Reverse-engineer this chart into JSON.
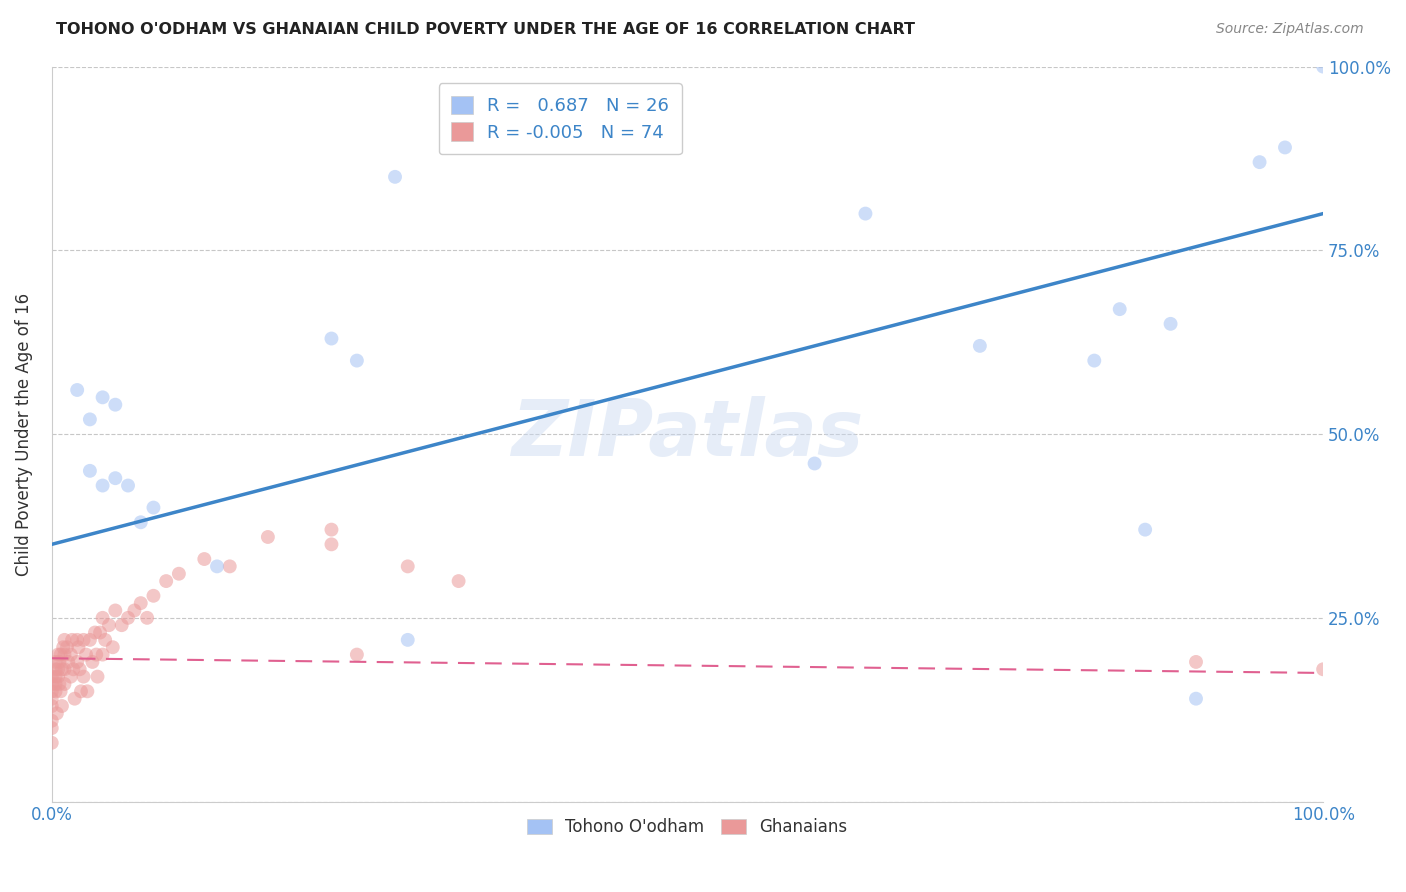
{
  "title": "TOHONO O'ODHAM VS GHANAIAN CHILD POVERTY UNDER THE AGE OF 16 CORRELATION CHART",
  "source": "Source: ZipAtlas.com",
  "ylabel_label": "Child Poverty Under the Age of 16",
  "yaxis_ticks": [
    0.0,
    0.25,
    0.5,
    0.75,
    1.0
  ],
  "yaxis_ticklabels": [
    "",
    "25.0%",
    "50.0%",
    "75.0%",
    "100.0%"
  ],
  "xaxis_ticks": [
    0.0,
    0.25,
    0.5,
    0.75,
    1.0
  ],
  "xaxis_ticklabels": [
    "0.0%",
    "",
    "",
    "",
    "100.0%"
  ],
  "legend_label1": "Tohono O'odham",
  "legend_label2": "Ghanaians",
  "watermark": "ZIPatlas",
  "blue_color": "#a4c2f4",
  "pink_color": "#ea9999",
  "blue_line_color": "#3d85c8",
  "pink_line_color": "#e06090",
  "grid_color": "#b0b0b0",
  "background_color": "#ffffff",
  "tohono_x": [
    0.02,
    0.03,
    0.03,
    0.04,
    0.05,
    0.05,
    0.06,
    0.07,
    0.08,
    0.13,
    0.22,
    0.24,
    0.27,
    0.6,
    0.64,
    0.73,
    0.82,
    0.84,
    0.86,
    0.88,
    0.9,
    0.95,
    0.97,
    1.0,
    0.28,
    0.04
  ],
  "tohono_y": [
    0.56,
    0.52,
    0.45,
    0.55,
    0.44,
    0.54,
    0.43,
    0.38,
    0.4,
    0.32,
    0.63,
    0.6,
    0.85,
    0.46,
    0.8,
    0.62,
    0.6,
    0.67,
    0.37,
    0.65,
    0.14,
    0.87,
    0.89,
    1.0,
    0.22,
    0.43
  ],
  "ghanaian_x": [
    0.0,
    0.0,
    0.0,
    0.0,
    0.0,
    0.0,
    0.0,
    0.0,
    0.003,
    0.003,
    0.003,
    0.003,
    0.003,
    0.004,
    0.005,
    0.005,
    0.005,
    0.006,
    0.006,
    0.007,
    0.007,
    0.008,
    0.008,
    0.009,
    0.01,
    0.01,
    0.01,
    0.01,
    0.012,
    0.013,
    0.015,
    0.015,
    0.016,
    0.017,
    0.018,
    0.02,
    0.02,
    0.021,
    0.022,
    0.023,
    0.025,
    0.025,
    0.027,
    0.028,
    0.03,
    0.032,
    0.034,
    0.035,
    0.036,
    0.038,
    0.04,
    0.04,
    0.042,
    0.045,
    0.048,
    0.05,
    0.055,
    0.06,
    0.065,
    0.07,
    0.075,
    0.08,
    0.09,
    0.1,
    0.12,
    0.14,
    0.17,
    0.22,
    0.24,
    0.28,
    0.32,
    0.22,
    0.9,
    1.0
  ],
  "ghanaian_y": [
    0.17,
    0.16,
    0.15,
    0.14,
    0.13,
    0.11,
    0.1,
    0.08,
    0.19,
    0.18,
    0.17,
    0.16,
    0.15,
    0.12,
    0.2,
    0.18,
    0.17,
    0.19,
    0.16,
    0.2,
    0.15,
    0.18,
    0.13,
    0.21,
    0.22,
    0.2,
    0.18,
    0.16,
    0.21,
    0.19,
    0.2,
    0.17,
    0.22,
    0.18,
    0.14,
    0.22,
    0.19,
    0.21,
    0.18,
    0.15,
    0.22,
    0.17,
    0.2,
    0.15,
    0.22,
    0.19,
    0.23,
    0.2,
    0.17,
    0.23,
    0.25,
    0.2,
    0.22,
    0.24,
    0.21,
    0.26,
    0.24,
    0.25,
    0.26,
    0.27,
    0.25,
    0.28,
    0.3,
    0.31,
    0.33,
    0.32,
    0.36,
    0.37,
    0.2,
    0.32,
    0.3,
    0.35,
    0.19,
    0.18
  ],
  "blue_trend_x": [
    0.0,
    1.0
  ],
  "blue_trend_y": [
    0.35,
    0.8
  ],
  "pink_trend_x": [
    0.0,
    1.0
  ],
  "pink_trend_y": [
    0.195,
    0.175
  ],
  "marker_size": 100,
  "marker_alpha": 0.55
}
